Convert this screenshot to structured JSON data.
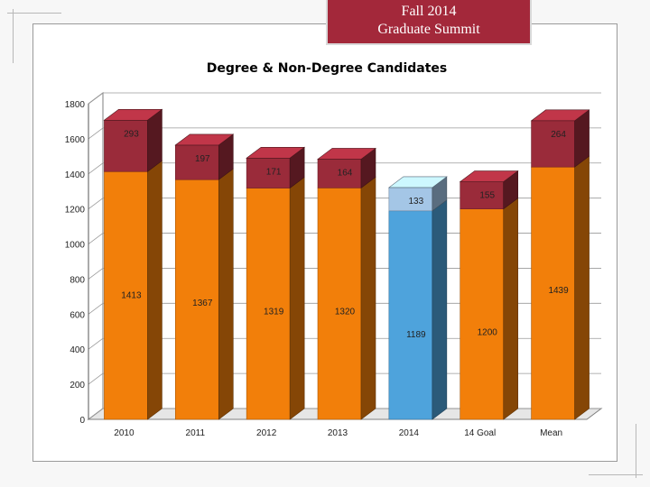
{
  "header": {
    "line1": "Fall 2014",
    "line2": "Graduate Summit"
  },
  "colors": {
    "degree": "#f27f0a",
    "non_degree": "#9a2b3a",
    "highlight_degree": "#4ea3dc",
    "highlight_non_degree": "#a4c6e6"
  },
  "chart_data": {
    "type": "bar",
    "stacked": true,
    "title": "Degree & Non-Degree Candidates",
    "xlabel": "",
    "ylabel": "",
    "ylim": [
      0,
      1800
    ],
    "yticks": [
      0,
      200,
      400,
      600,
      800,
      1000,
      1200,
      1400,
      1600,
      1800
    ],
    "categories": [
      "2010",
      "2011",
      "2012",
      "2013",
      "2014",
      "14 Goal",
      "Mean"
    ],
    "highlight_category": "2014",
    "series": [
      {
        "name": "Degree",
        "values": [
          1413,
          1367,
          1319,
          1320,
          1189,
          1200,
          1439
        ]
      },
      {
        "name": "Non-Degree",
        "values": [
          293,
          197,
          171,
          164,
          133,
          155,
          264
        ]
      }
    ]
  }
}
